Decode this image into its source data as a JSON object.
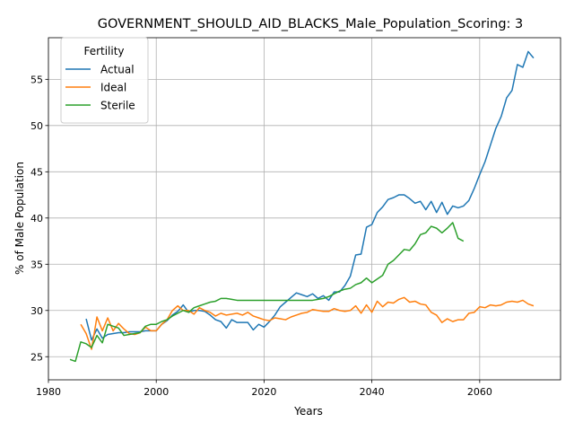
{
  "chart_data": {
    "type": "line",
    "title": "GOVERNMENT_SHOULD_AID_BLACKS_Male_Population_Scoring: 3",
    "xlabel": "Years",
    "ylabel": "% of Male Population",
    "xlim": [
      1980,
      2075
    ],
    "ylim": [
      22.5,
      59.5
    ],
    "xticks": [
      1980,
      2000,
      2020,
      2040,
      2060
    ],
    "yticks": [
      25,
      30,
      35,
      40,
      45,
      50,
      55
    ],
    "grid": true,
    "legend": {
      "title": "Fertility",
      "placement": "top-left"
    },
    "series": [
      {
        "name": "Actual",
        "color": "#1f77b4",
        "x": [
          1987,
          1988,
          1989,
          1990,
          1991,
          1992,
          1993,
          1994,
          1995,
          1996,
          1997,
          1998,
          1999,
          2000,
          2001,
          2002,
          2003,
          2004,
          2005,
          2006,
          2007,
          2008,
          2009,
          2010,
          2011,
          2012,
          2013,
          2014,
          2015,
          2016,
          2017,
          2018,
          2019,
          2020,
          2021,
          2022,
          2023,
          2024,
          2025,
          2026,
          2027,
          2028,
          2029,
          2030,
          2031,
          2032,
          2033,
          2034,
          2035,
          2036,
          2037,
          2038,
          2039,
          2040,
          2041,
          2042,
          2043,
          2044,
          2045,
          2046,
          2047,
          2048,
          2049,
          2050,
          2051,
          2052,
          2053,
          2054,
          2055,
          2056,
          2057,
          2058,
          2059,
          2060,
          2061,
          2062,
          2063,
          2064,
          2065,
          2066,
          2067,
          2068,
          2069,
          2070
        ],
        "values": [
          29.1,
          26.8,
          28.0,
          27.0,
          27.4,
          27.5,
          27.6,
          27.6,
          27.7,
          27.7,
          27.7,
          27.8,
          27.8,
          27.8,
          28.5,
          28.9,
          29.5,
          29.9,
          30.6,
          29.8,
          30.0,
          30.0,
          29.9,
          29.5,
          29.0,
          28.8,
          28.1,
          29.0,
          28.7,
          28.7,
          28.7,
          27.9,
          28.5,
          28.2,
          28.8,
          29.5,
          30.4,
          30.9,
          31.4,
          31.9,
          31.7,
          31.5,
          31.8,
          31.3,
          31.6,
          31.1,
          32.0,
          32.0,
          32.7,
          33.7,
          36.0,
          36.1,
          39.0,
          39.3,
          40.6,
          41.2,
          42.0,
          42.2,
          42.5,
          42.5,
          42.1,
          41.6,
          41.8,
          40.9,
          41.8,
          40.6,
          41.7,
          40.4,
          41.3,
          41.1,
          41.3,
          41.9,
          43.2,
          44.7,
          46.1,
          47.9,
          49.7,
          51.0,
          53.0,
          53.8,
          56.6,
          56.3,
          58.0,
          57.3
        ]
      },
      {
        "name": "Ideal",
        "color": "#ff7f0e",
        "x": [
          1986,
          1987,
          1988,
          1989,
          1990,
          1991,
          1992,
          1993,
          1994,
          1995,
          1996,
          1997,
          1998,
          1999,
          2000,
          2001,
          2002,
          2003,
          2004,
          2005,
          2006,
          2007,
          2008,
          2009,
          2010,
          2011,
          2012,
          2013,
          2014,
          2015,
          2016,
          2017,
          2018,
          2019,
          2020,
          2021,
          2022,
          2023,
          2024,
          2025,
          2026,
          2027,
          2028,
          2029,
          2030,
          2031,
          2032,
          2033,
          2034,
          2035,
          2036,
          2037,
          2038,
          2039,
          2040,
          2041,
          2042,
          2043,
          2044,
          2045,
          2046,
          2047,
          2048,
          2049,
          2050,
          2051,
          2052,
          2053,
          2054,
          2055,
          2056,
          2057,
          2058,
          2059,
          2060,
          2061,
          2062,
          2063,
          2064,
          2065,
          2066,
          2067,
          2068,
          2069,
          2070
        ],
        "values": [
          28.5,
          27.5,
          25.8,
          29.3,
          27.8,
          29.2,
          27.8,
          28.6,
          28.0,
          27.5,
          27.4,
          27.6,
          28.2,
          27.8,
          27.8,
          28.5,
          29.0,
          30.0,
          30.5,
          30.0,
          30.0,
          29.6,
          30.3,
          30.0,
          29.8,
          29.4,
          29.7,
          29.5,
          29.6,
          29.7,
          29.5,
          29.8,
          29.4,
          29.2,
          29.0,
          28.9,
          29.2,
          29.1,
          29.0,
          29.3,
          29.5,
          29.7,
          29.8,
          30.1,
          30.0,
          29.9,
          29.9,
          30.2,
          30.0,
          29.9,
          30.0,
          30.5,
          29.7,
          30.6,
          29.8,
          31.0,
          30.4,
          30.9,
          30.8,
          31.2,
          31.4,
          30.9,
          31.0,
          30.7,
          30.6,
          29.8,
          29.5,
          28.7,
          29.1,
          28.8,
          29.0,
          29.0,
          29.7,
          29.8,
          30.4,
          30.3,
          30.6,
          30.5,
          30.6,
          30.9,
          31.0,
          30.9,
          31.1,
          30.7,
          30.5
        ]
      },
      {
        "name": "Sterile",
        "color": "#2ca02c",
        "x": [
          1984,
          1985,
          1986,
          1987,
          1988,
          1989,
          1990,
          1991,
          1992,
          1993,
          1994,
          1995,
          1996,
          1997,
          1998,
          1999,
          2000,
          2001,
          2002,
          2003,
          2004,
          2005,
          2006,
          2007,
          2008,
          2009,
          2010,
          2011,
          2012,
          2013,
          2014,
          2015,
          2016,
          2017,
          2018,
          2019,
          2020,
          2021,
          2022,
          2023,
          2024,
          2025,
          2026,
          2027,
          2028,
          2029,
          2030,
          2031,
          2032,
          2033,
          2034,
          2035,
          2036,
          2037,
          2038,
          2039,
          2040,
          2041,
          2042,
          2043,
          2044,
          2045,
          2046,
          2047,
          2048,
          2049,
          2050,
          2051,
          2052,
          2053,
          2054,
          2055,
          2056,
          2057
        ],
        "values": [
          24.7,
          24.5,
          26.6,
          26.4,
          26.0,
          27.3,
          26.5,
          28.5,
          28.3,
          28.1,
          27.3,
          27.4,
          27.5,
          27.6,
          28.3,
          28.5,
          28.5,
          28.8,
          29.0,
          29.4,
          29.7,
          30.0,
          29.8,
          30.3,
          30.5,
          30.7,
          30.9,
          31.0,
          31.3,
          31.3,
          31.2,
          31.1,
          31.1,
          31.1,
          31.1,
          31.1,
          31.1,
          31.1,
          31.1,
          31.1,
          31.1,
          31.1,
          31.1,
          31.1,
          31.1,
          31.1,
          31.2,
          31.3,
          31.5,
          31.8,
          32.1,
          32.3,
          32.4,
          32.8,
          33.0,
          33.5,
          33.0,
          33.4,
          33.8,
          35.0,
          35.4,
          36.0,
          36.6,
          36.5,
          37.2,
          38.2,
          38.4,
          39.1,
          38.9,
          38.4,
          38.9,
          39.5,
          37.8,
          37.5
        ]
      }
    ]
  }
}
